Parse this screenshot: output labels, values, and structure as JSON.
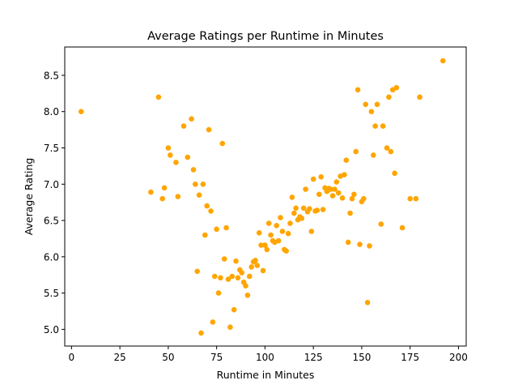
{
  "chart_data": {
    "type": "scatter",
    "title": "Average Ratings per Runtime in Minutes",
    "xlabel": "Runtime in Minutes",
    "ylabel": "Average Rating",
    "xlim": [
      -3.5,
      204
    ],
    "ylim": [
      4.77,
      8.89
    ],
    "x_ticks": [
      0,
      25,
      50,
      75,
      100,
      125,
      150,
      175,
      200
    ],
    "y_ticks": [
      5.0,
      5.5,
      6.0,
      6.5,
      7.0,
      7.5,
      8.0,
      8.5
    ],
    "grid": false,
    "legend": "none",
    "marker_color": "#ffa500",
    "points": [
      [
        5,
        8.0
      ],
      [
        41,
        6.89
      ],
      [
        45,
        8.2
      ],
      [
        47,
        6.8
      ],
      [
        48,
        6.95
      ],
      [
        50,
        7.5
      ],
      [
        51,
        7.4
      ],
      [
        54,
        7.3
      ],
      [
        55,
        6.83
      ],
      [
        58,
        7.8
      ],
      [
        60,
        7.37
      ],
      [
        62,
        7.9
      ],
      [
        63,
        7.2
      ],
      [
        64,
        7.0
      ],
      [
        65,
        5.8
      ],
      [
        66,
        6.85
      ],
      [
        67,
        4.95
      ],
      [
        68,
        7.0
      ],
      [
        69,
        6.3
      ],
      [
        70,
        6.7
      ],
      [
        71,
        7.75
      ],
      [
        72,
        6.63
      ],
      [
        73,
        5.1
      ],
      [
        74,
        5.73
      ],
      [
        75,
        6.38
      ],
      [
        76,
        5.5
      ],
      [
        77,
        5.71
      ],
      [
        78,
        7.56
      ],
      [
        79,
        5.97
      ],
      [
        80,
        6.4
      ],
      [
        81,
        5.69
      ],
      [
        82,
        5.03
      ],
      [
        83,
        5.73
      ],
      [
        84,
        5.27
      ],
      [
        85,
        5.94
      ],
      [
        86,
        5.71
      ],
      [
        87,
        5.82
      ],
      [
        88,
        5.78
      ],
      [
        89,
        5.65
      ],
      [
        90,
        5.6
      ],
      [
        91,
        5.47
      ],
      [
        92,
        5.73
      ],
      [
        93,
        5.86
      ],
      [
        94,
        5.93
      ],
      [
        95,
        5.95
      ],
      [
        96,
        5.88
      ],
      [
        97,
        6.33
      ],
      [
        98,
        6.16
      ],
      [
        99,
        5.81
      ],
      [
        100,
        6.16
      ],
      [
        101,
        6.1
      ],
      [
        102,
        6.46
      ],
      [
        103,
        6.3
      ],
      [
        104,
        6.22
      ],
      [
        105,
        6.2
      ],
      [
        106,
        6.43
      ],
      [
        107,
        6.22
      ],
      [
        108,
        6.54
      ],
      [
        109,
        6.35
      ],
      [
        110,
        6.1
      ],
      [
        111,
        6.08
      ],
      [
        112,
        6.32
      ],
      [
        113,
        6.46
      ],
      [
        114,
        6.82
      ],
      [
        115,
        6.6
      ],
      [
        116,
        6.67
      ],
      [
        117,
        6.51
      ],
      [
        118,
        6.55
      ],
      [
        119,
        6.53
      ],
      [
        120,
        6.67
      ],
      [
        121,
        6.93
      ],
      [
        122,
        6.62
      ],
      [
        123,
        6.66
      ],
      [
        124,
        6.35
      ],
      [
        125,
        7.07
      ],
      [
        126,
        6.63
      ],
      [
        127,
        6.64
      ],
      [
        128,
        6.86
      ],
      [
        129,
        7.1
      ],
      [
        130,
        6.65
      ],
      [
        131,
        6.95
      ],
      [
        132,
        6.9
      ],
      [
        133,
        6.94
      ],
      [
        134,
        6.93
      ],
      [
        135,
        6.84
      ],
      [
        136,
        6.93
      ],
      [
        137,
        7.03
      ],
      [
        138,
        6.88
      ],
      [
        139,
        7.11
      ],
      [
        140,
        6.81
      ],
      [
        141,
        7.13
      ],
      [
        142,
        7.33
      ],
      [
        143,
        6.2
      ],
      [
        144,
        6.6
      ],
      [
        145,
        6.8
      ],
      [
        146,
        6.86
      ],
      [
        147,
        7.45
      ],
      [
        148,
        8.3
      ],
      [
        149,
        6.17
      ],
      [
        150,
        6.76
      ],
      [
        151,
        6.8
      ],
      [
        152,
        8.1
      ],
      [
        153,
        5.37
      ],
      [
        154,
        6.15
      ],
      [
        155,
        8.0
      ],
      [
        156,
        7.4
      ],
      [
        157,
        7.8
      ],
      [
        158,
        8.1
      ],
      [
        160,
        6.45
      ],
      [
        161,
        7.8
      ],
      [
        163,
        7.5
      ],
      [
        164,
        8.2
      ],
      [
        165,
        7.45
      ],
      [
        166,
        8.3
      ],
      [
        167,
        7.15
      ],
      [
        168,
        8.33
      ],
      [
        171,
        6.4
      ],
      [
        175,
        6.8
      ],
      [
        178,
        6.8
      ],
      [
        180,
        8.2
      ],
      [
        192,
        8.7
      ]
    ]
  }
}
